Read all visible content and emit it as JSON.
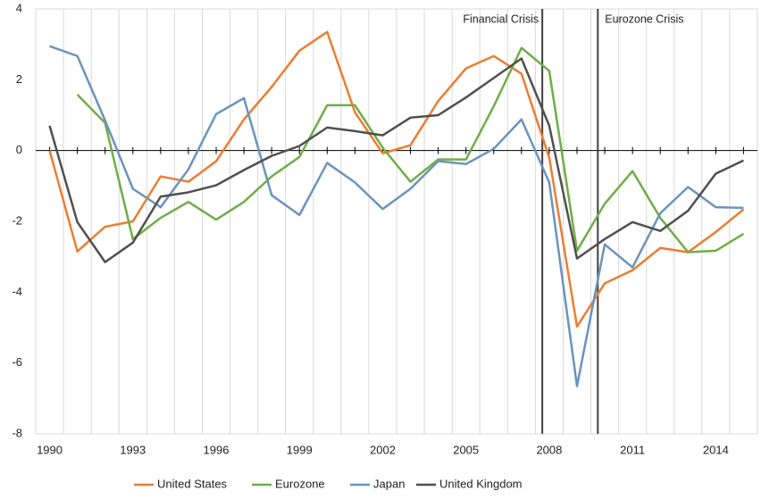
{
  "chart_data": {
    "type": "line",
    "x": [
      1990,
      1991,
      1992,
      1993,
      1994,
      1995,
      1996,
      1997,
      1998,
      1999,
      2000,
      2001,
      2002,
      2003,
      2004,
      2005,
      2006,
      2007,
      2008,
      2009,
      2010,
      2011,
      2012,
      2013,
      2014,
      2015
    ],
    "series": [
      {
        "name": "United States",
        "color": "#ed7d31",
        "values": [
          0,
          -2.85,
          -2.15,
          -2.0,
          -0.73,
          -0.88,
          -0.3,
          0.88,
          1.8,
          2.82,
          3.35,
          1.08,
          -0.08,
          0.15,
          1.4,
          2.32,
          2.67,
          2.17,
          -0.2,
          -4.97,
          -3.75,
          -3.38,
          -2.75,
          -2.87,
          -2.3,
          -1.66
        ]
      },
      {
        "name": "Eurozone",
        "color": "#70ad47",
        "values": [
          null,
          1.58,
          0.78,
          -2.5,
          -1.9,
          -1.45,
          -1.95,
          -1.45,
          -0.73,
          -0.18,
          1.28,
          1.28,
          0.08,
          -0.88,
          -0.25,
          -0.25,
          1.25,
          2.9,
          2.25,
          -2.83,
          -1.5,
          -0.58,
          -1.9,
          -2.87,
          -2.83,
          -2.35
        ]
      },
      {
        "name": "Japan",
        "color": "#6b93bd",
        "values": [
          2.95,
          2.67,
          0.85,
          -1.08,
          -1.6,
          -0.53,
          1.03,
          1.48,
          -1.26,
          -1.82,
          -0.35,
          -0.9,
          -1.65,
          -1.08,
          -0.3,
          -0.38,
          0.05,
          0.88,
          -0.9,
          -6.65,
          -2.65,
          -3.3,
          -1.77,
          -1.03,
          -1.6,
          -1.62
        ]
      },
      {
        "name": "United Kingdom",
        "color": "#505050",
        "values": [
          0.7,
          -2.02,
          -3.15,
          -2.6,
          -1.3,
          -1.18,
          -0.98,
          -0.55,
          -0.15,
          0.13,
          0.65,
          0.55,
          0.43,
          0.93,
          1.0,
          1.5,
          2.05,
          2.6,
          0.7,
          -3.05,
          -2.5,
          -2.02,
          -2.27,
          -1.7,
          -0.65,
          -0.28
        ]
      }
    ],
    "xlim": [
      1989.5,
      2015.5
    ],
    "xticks": [
      1990,
      1993,
      1996,
      1999,
      2002,
      2005,
      2008,
      2011,
      2014
    ],
    "ylim": [
      -8,
      4
    ],
    "yticks": [
      -8,
      -6,
      -4,
      -2,
      0,
      2,
      4
    ],
    "annotations": [
      {
        "text": "Financial Crisis",
        "x": 2007.75
      },
      {
        "text": "Eurozone Crisis",
        "x": 2009.75
      }
    ],
    "grid": true,
    "legend": "bottom"
  }
}
